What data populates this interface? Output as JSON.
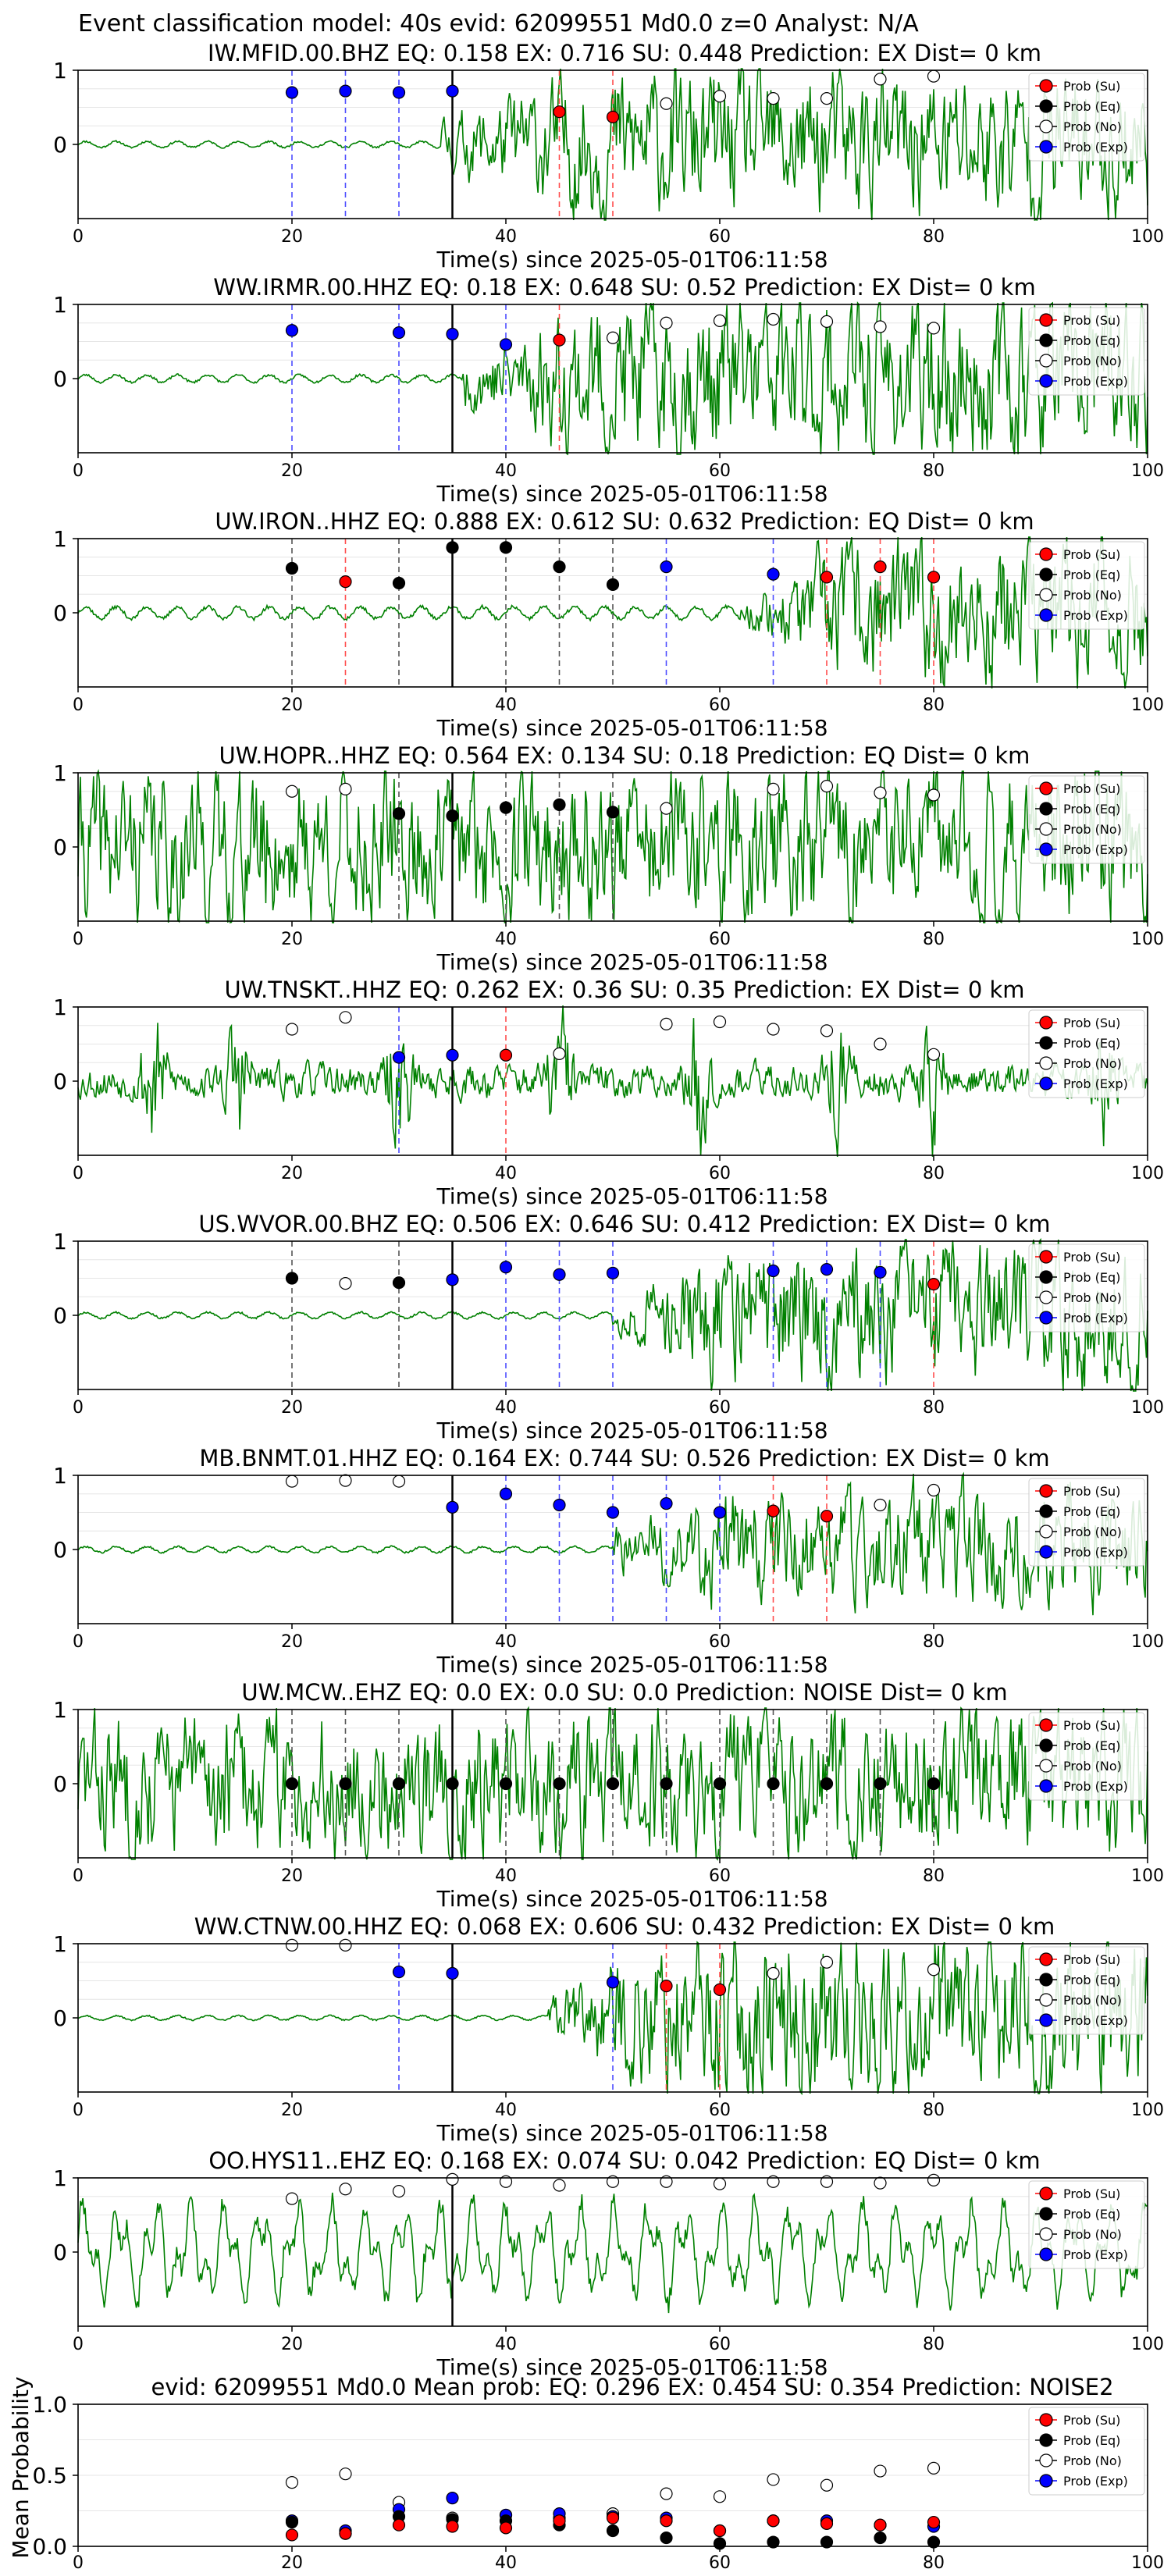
{
  "figure_title": "Event classification model: 40s evid: 62099551 Md0.0 z=0 Analyst: N/A",
  "legend_labels": [
    "Prob (Su)",
    "Prob (Eq)",
    "Prob (No)",
    "Prob (Exp)"
  ],
  "colors": {
    "su": "#ff0000",
    "eq": "#000000",
    "no": "#ffffff",
    "exp": "#0000ff",
    "trace": "#008000",
    "su_line": "#ff4d4d",
    "eq_line": "#555555",
    "exp_line": "#4d4dff",
    "onset_line": "#000000"
  },
  "chart_data": [
    {
      "type": "line",
      "title": "IW.MFID.00.BHZ   EQ: 0.158   EX: 0.716   SU: 0.448   Prediction: EX    Dist= 0 km",
      "xlabel": "Time(s) since 2025-05-01T06:11:58",
      "xlim": [
        0,
        100
      ],
      "ylim": [
        -1,
        1
      ],
      "xticks": [
        0,
        20,
        40,
        60,
        80,
        100
      ],
      "yticks": [
        0,
        1
      ],
      "onset": 35,
      "trace": {
        "pre": 0.04,
        "post": 0.75,
        "onset_at": 34,
        "seed": 11,
        "style": "burst"
      },
      "points": [
        {
          "t": 20,
          "cls": "exp",
          "p": 0.7
        },
        {
          "t": 25,
          "cls": "exp",
          "p": 0.72
        },
        {
          "t": 30,
          "cls": "exp",
          "p": 0.7
        },
        {
          "t": 35,
          "cls": "exp",
          "p": 0.72
        },
        {
          "t": 45,
          "cls": "su",
          "p": 0.44
        },
        {
          "t": 50,
          "cls": "su",
          "p": 0.37
        },
        {
          "t": 55,
          "cls": "no",
          "p": 0.55
        },
        {
          "t": 60,
          "cls": "no",
          "p": 0.65
        },
        {
          "t": 65,
          "cls": "no",
          "p": 0.62
        },
        {
          "t": 70,
          "cls": "no",
          "p": 0.62
        },
        {
          "t": 75,
          "cls": "no",
          "p": 0.88
        },
        {
          "t": 80,
          "cls": "no",
          "p": 0.92
        }
      ]
    },
    {
      "type": "line",
      "title": "WW.IRMR.00.HHZ   EQ: 0.18   EX: 0.648   SU: 0.52   Prediction: EX    Dist= 0 km",
      "xlabel": "Time(s) since 2025-05-01T06:11:58",
      "xlim": [
        0,
        100
      ],
      "ylim": [
        -1,
        1
      ],
      "xticks": [
        0,
        20,
        40,
        60,
        80,
        100
      ],
      "yticks": [
        0,
        1
      ],
      "onset": 35,
      "trace": {
        "pre": 0.05,
        "post": 0.85,
        "onset_at": 36,
        "seed": 23,
        "style": "burst"
      },
      "points": [
        {
          "t": 20,
          "cls": "exp",
          "p": 0.65
        },
        {
          "t": 30,
          "cls": "exp",
          "p": 0.62
        },
        {
          "t": 35,
          "cls": "exp",
          "p": 0.6
        },
        {
          "t": 40,
          "cls": "exp",
          "p": 0.46
        },
        {
          "t": 45,
          "cls": "su",
          "p": 0.52
        },
        {
          "t": 50,
          "cls": "no",
          "p": 0.55
        },
        {
          "t": 55,
          "cls": "no",
          "p": 0.75
        },
        {
          "t": 60,
          "cls": "no",
          "p": 0.78
        },
        {
          "t": 65,
          "cls": "no",
          "p": 0.8
        },
        {
          "t": 70,
          "cls": "no",
          "p": 0.77
        },
        {
          "t": 75,
          "cls": "no",
          "p": 0.7
        },
        {
          "t": 80,
          "cls": "no",
          "p": 0.68
        }
      ]
    },
    {
      "type": "line",
      "title": "UW.IRON..HHZ   EQ: 0.888   EX: 0.612   SU: 0.632   Prediction: EQ    Dist= 0 km",
      "xlabel": "Time(s) since 2025-05-01T06:11:58",
      "xlim": [
        0,
        100
      ],
      "ylim": [
        -1,
        1
      ],
      "xticks": [
        0,
        20,
        40,
        60,
        80,
        100
      ],
      "yticks": [
        0,
        1
      ],
      "onset": 35,
      "trace": {
        "pre": 0.08,
        "post": 0.12,
        "onset_at": 62,
        "late": 0.75,
        "seed": 37,
        "style": "late"
      },
      "points": [
        {
          "t": 20,
          "cls": "eq",
          "p": 0.6
        },
        {
          "t": 25,
          "cls": "su",
          "p": 0.42
        },
        {
          "t": 30,
          "cls": "eq",
          "p": 0.4
        },
        {
          "t": 35,
          "cls": "eq",
          "p": 0.88
        },
        {
          "t": 40,
          "cls": "eq",
          "p": 0.88
        },
        {
          "t": 45,
          "cls": "eq",
          "p": 0.62
        },
        {
          "t": 50,
          "cls": "eq",
          "p": 0.38
        },
        {
          "t": 55,
          "cls": "exp",
          "p": 0.62
        },
        {
          "t": 65,
          "cls": "exp",
          "p": 0.52
        },
        {
          "t": 70,
          "cls": "su",
          "p": 0.48
        },
        {
          "t": 75,
          "cls": "su",
          "p": 0.62
        },
        {
          "t": 80,
          "cls": "su",
          "p": 0.48
        }
      ]
    },
    {
      "type": "line",
      "title": "UW.HOPR..HHZ   EQ: 0.564   EX: 0.134   SU: 0.18   Prediction: EQ    Dist= 0 km",
      "xlabel": "Time(s) since 2025-05-01T06:11:58",
      "xlim": [
        0,
        100
      ],
      "ylim": [
        -1,
        1
      ],
      "xticks": [
        0,
        20,
        40,
        60,
        80,
        100
      ],
      "yticks": [
        0,
        1
      ],
      "onset": 35,
      "trace": {
        "pre": 0.8,
        "post": 0.8,
        "onset_at": 35,
        "seed": 41,
        "style": "noise"
      },
      "points": [
        {
          "t": 20,
          "cls": "no",
          "p": 0.75
        },
        {
          "t": 25,
          "cls": "no",
          "p": 0.78
        },
        {
          "t": 30,
          "cls": "eq",
          "p": 0.45
        },
        {
          "t": 35,
          "cls": "eq",
          "p": 0.42
        },
        {
          "t": 40,
          "cls": "eq",
          "p": 0.53
        },
        {
          "t": 45,
          "cls": "eq",
          "p": 0.57
        },
        {
          "t": 50,
          "cls": "eq",
          "p": 0.47
        },
        {
          "t": 55,
          "cls": "no",
          "p": 0.52
        },
        {
          "t": 65,
          "cls": "no",
          "p": 0.78
        },
        {
          "t": 70,
          "cls": "no",
          "p": 0.82
        },
        {
          "t": 75,
          "cls": "no",
          "p": 0.73
        },
        {
          "t": 80,
          "cls": "no",
          "p": 0.7
        }
      ]
    },
    {
      "type": "line",
      "title": "UW.TNSKT..HHZ   EQ: 0.262   EX: 0.36   SU: 0.35   Prediction: EX    Dist= 0 km",
      "xlabel": "Time(s) since 2025-05-01T06:11:58",
      "xlim": [
        0,
        100
      ],
      "ylim": [
        -1,
        1
      ],
      "xticks": [
        0,
        20,
        40,
        60,
        80,
        100
      ],
      "yticks": [
        0,
        1
      ],
      "onset": 35,
      "trace": {
        "pre": 0.18,
        "post": 0.25,
        "onset_at": 35,
        "seed": 53,
        "style": "bursts",
        "bursts": [
          7,
          15,
          30,
          45,
          58,
          71,
          80,
          96
        ]
      },
      "points": [
        {
          "t": 20,
          "cls": "no",
          "p": 0.7
        },
        {
          "t": 25,
          "cls": "no",
          "p": 0.86
        },
        {
          "t": 30,
          "cls": "exp",
          "p": 0.32
        },
        {
          "t": 35,
          "cls": "exp",
          "p": 0.35
        },
        {
          "t": 40,
          "cls": "su",
          "p": 0.35
        },
        {
          "t": 45,
          "cls": "no",
          "p": 0.37
        },
        {
          "t": 55,
          "cls": "no",
          "p": 0.77
        },
        {
          "t": 60,
          "cls": "no",
          "p": 0.8
        },
        {
          "t": 65,
          "cls": "no",
          "p": 0.7
        },
        {
          "t": 70,
          "cls": "no",
          "p": 0.68
        },
        {
          "t": 75,
          "cls": "no",
          "p": 0.5
        },
        {
          "t": 80,
          "cls": "no",
          "p": 0.36
        }
      ]
    },
    {
      "type": "line",
      "title": "US.WVOR.00.BHZ   EQ: 0.506   EX: 0.646   SU: 0.412   Prediction: EX    Dist= 0 km",
      "xlabel": "Time(s) since 2025-05-01T06:11:58",
      "xlim": [
        0,
        100
      ],
      "ylim": [
        -1,
        1
      ],
      "xticks": [
        0,
        20,
        40,
        60,
        80,
        100
      ],
      "yticks": [
        0,
        1
      ],
      "onset": 35,
      "trace": {
        "pre": 0.04,
        "post": 0.15,
        "onset_at": 50,
        "late": 0.7,
        "seed": 67,
        "style": "late"
      },
      "points": [
        {
          "t": 20,
          "cls": "eq",
          "p": 0.5
        },
        {
          "t": 25,
          "cls": "no",
          "p": 0.43
        },
        {
          "t": 30,
          "cls": "eq",
          "p": 0.44
        },
        {
          "t": 35,
          "cls": "exp",
          "p": 0.48
        },
        {
          "t": 40,
          "cls": "exp",
          "p": 0.65
        },
        {
          "t": 45,
          "cls": "exp",
          "p": 0.55
        },
        {
          "t": 50,
          "cls": "exp",
          "p": 0.57
        },
        {
          "t": 65,
          "cls": "exp",
          "p": 0.6
        },
        {
          "t": 70,
          "cls": "exp",
          "p": 0.62
        },
        {
          "t": 75,
          "cls": "exp",
          "p": 0.58
        },
        {
          "t": 80,
          "cls": "su",
          "p": 0.42
        }
      ]
    },
    {
      "type": "line",
      "title": "MB.BNMT.01.HHZ   EQ: 0.164   EX: 0.744   SU: 0.526   Prediction: EX    Dist= 0 km",
      "xlabel": "Time(s) since 2025-05-01T06:11:58",
      "xlim": [
        0,
        100
      ],
      "ylim": [
        -1,
        1
      ],
      "xticks": [
        0,
        20,
        40,
        60,
        80,
        100
      ],
      "yticks": [
        0,
        1
      ],
      "onset": 35,
      "trace": {
        "pre": 0.04,
        "post": 0.25,
        "onset_at": 50,
        "late": 0.6,
        "seed": 79,
        "style": "late"
      },
      "points": [
        {
          "t": 20,
          "cls": "no",
          "p": 0.92
        },
        {
          "t": 25,
          "cls": "no",
          "p": 0.93
        },
        {
          "t": 30,
          "cls": "no",
          "p": 0.92
        },
        {
          "t": 35,
          "cls": "exp",
          "p": 0.57
        },
        {
          "t": 40,
          "cls": "exp",
          "p": 0.75
        },
        {
          "t": 45,
          "cls": "exp",
          "p": 0.6
        },
        {
          "t": 50,
          "cls": "exp",
          "p": 0.5
        },
        {
          "t": 55,
          "cls": "exp",
          "p": 0.62
        },
        {
          "t": 60,
          "cls": "exp",
          "p": 0.5
        },
        {
          "t": 65,
          "cls": "su",
          "p": 0.52
        },
        {
          "t": 70,
          "cls": "su",
          "p": 0.45
        },
        {
          "t": 75,
          "cls": "no",
          "p": 0.6
        },
        {
          "t": 80,
          "cls": "no",
          "p": 0.8
        }
      ]
    },
    {
      "type": "line",
      "title": "UW.MCW..EHZ   EQ: 0.0   EX: 0.0   SU: 0.0   Prediction: NOISE    Dist= 0 km",
      "xlabel": "Time(s) since 2025-05-01T06:11:58",
      "xlim": [
        0,
        100
      ],
      "ylim": [
        -1,
        1
      ],
      "xticks": [
        0,
        20,
        40,
        60,
        80,
        100
      ],
      "yticks": [
        0,
        1
      ],
      "onset": 35,
      "trace": {
        "pre": 0.75,
        "post": 0.75,
        "onset_at": 35,
        "seed": 83,
        "style": "noise"
      },
      "points": [
        {
          "t": 20,
          "cls": "eq",
          "p": 0.0
        },
        {
          "t": 25,
          "cls": "eq",
          "p": 0.0
        },
        {
          "t": 30,
          "cls": "eq",
          "p": 0.0
        },
        {
          "t": 35,
          "cls": "eq",
          "p": 0.0
        },
        {
          "t": 40,
          "cls": "eq",
          "p": 0.0
        },
        {
          "t": 45,
          "cls": "eq",
          "p": 0.0
        },
        {
          "t": 50,
          "cls": "eq",
          "p": 0.0
        },
        {
          "t": 55,
          "cls": "eq",
          "p": 0.0
        },
        {
          "t": 60,
          "cls": "eq",
          "p": 0.0
        },
        {
          "t": 65,
          "cls": "eq",
          "p": 0.0
        },
        {
          "t": 70,
          "cls": "eq",
          "p": 0.0
        },
        {
          "t": 75,
          "cls": "eq",
          "p": 0.0
        },
        {
          "t": 80,
          "cls": "eq",
          "p": 0.0
        }
      ]
    },
    {
      "type": "line",
      "title": "WW.CTNW.00.HHZ   EQ: 0.068   EX: 0.606   SU: 0.432   Prediction: EX    Dist= 0 km",
      "xlabel": "Time(s) since 2025-05-01T06:11:58",
      "xlim": [
        0,
        100
      ],
      "ylim": [
        -1,
        1
      ],
      "xticks": [
        0,
        20,
        40,
        60,
        80,
        100
      ],
      "yticks": [
        0,
        1
      ],
      "onset": 35,
      "trace": {
        "pre": 0.03,
        "post": 0.2,
        "onset_at": 44,
        "late": 0.85,
        "seed": 97,
        "style": "late"
      },
      "points": [
        {
          "t": 20,
          "cls": "no",
          "p": 0.98
        },
        {
          "t": 25,
          "cls": "no",
          "p": 0.98
        },
        {
          "t": 30,
          "cls": "exp",
          "p": 0.62
        },
        {
          "t": 35,
          "cls": "exp",
          "p": 0.6
        },
        {
          "t": 50,
          "cls": "exp",
          "p": 0.48
        },
        {
          "t": 55,
          "cls": "su",
          "p": 0.43
        },
        {
          "t": 60,
          "cls": "su",
          "p": 0.38
        },
        {
          "t": 65,
          "cls": "no",
          "p": 0.6
        },
        {
          "t": 70,
          "cls": "no",
          "p": 0.75
        },
        {
          "t": 80,
          "cls": "no",
          "p": 0.65
        }
      ]
    },
    {
      "type": "line",
      "title": "OO.HYS11..EHZ   EQ: 0.168   EX: 0.074   SU: 0.042   Prediction: EQ    Dist= 0 km",
      "xlabel": "Time(s) since 2025-05-01T06:11:58",
      "xlim": [
        0,
        100
      ],
      "ylim": [
        -1,
        1
      ],
      "xticks": [
        0,
        20,
        40,
        60,
        80,
        100
      ],
      "yticks": [
        0,
        1
      ],
      "onset": 35,
      "trace": {
        "pre": 0.7,
        "post": 0.7,
        "onset_at": 35,
        "seed": 101,
        "style": "lowfreq"
      },
      "points": [
        {
          "t": 20,
          "cls": "no",
          "p": 0.72
        },
        {
          "t": 25,
          "cls": "no",
          "p": 0.85
        },
        {
          "t": 30,
          "cls": "no",
          "p": 0.82
        },
        {
          "t": 35,
          "cls": "no",
          "p": 0.98
        },
        {
          "t": 40,
          "cls": "no",
          "p": 0.95
        },
        {
          "t": 45,
          "cls": "no",
          "p": 0.9
        },
        {
          "t": 50,
          "cls": "no",
          "p": 0.95
        },
        {
          "t": 55,
          "cls": "no",
          "p": 0.95
        },
        {
          "t": 60,
          "cls": "no",
          "p": 0.92
        },
        {
          "t": 65,
          "cls": "no",
          "p": 0.95
        },
        {
          "t": 70,
          "cls": "no",
          "p": 0.95
        },
        {
          "t": 75,
          "cls": "no",
          "p": 0.93
        },
        {
          "t": 80,
          "cls": "no",
          "p": 0.97
        }
      ]
    },
    {
      "type": "scatter",
      "title": "evid: 62099551   Md0.0   Mean prob:   EQ: 0.296   EX: 0.454   SU: 0.354   Prediction: NOISE2",
      "ylabel": "Mean Probability",
      "xlim": [
        0,
        100
      ],
      "ylim": [
        0,
        1
      ],
      "xticks": [
        0,
        20,
        40,
        60,
        80,
        100
      ],
      "yticks": [
        0.0,
        0.5,
        1.0
      ],
      "series": [
        {
          "name": "Prob (No)",
          "cls": "no",
          "x": [
            20,
            25,
            30,
            35,
            40,
            45,
            50,
            55,
            60,
            65,
            70,
            75,
            80
          ],
          "y": [
            0.45,
            0.51,
            0.31,
            0.2,
            0.22,
            0.2,
            0.23,
            0.37,
            0.35,
            0.47,
            0.43,
            0.53,
            0.55
          ]
        },
        {
          "name": "Prob (Exp)",
          "cls": "exp",
          "x": [
            20,
            25,
            30,
            35,
            40,
            45,
            50,
            55,
            60,
            65,
            70,
            75,
            80
          ],
          "y": [
            0.18,
            0.11,
            0.26,
            0.34,
            0.22,
            0.23,
            0.21,
            0.2,
            0.11,
            0.18,
            0.18,
            0.15,
            0.14
          ]
        },
        {
          "name": "Prob (Eq)",
          "cls": "eq",
          "x": [
            20,
            25,
            30,
            35,
            40,
            45,
            50,
            55,
            60,
            65,
            70,
            75,
            80
          ],
          "y": [
            0.17,
            0.09,
            0.21,
            0.19,
            0.18,
            0.15,
            0.11,
            0.06,
            0.02,
            0.03,
            0.03,
            0.06,
            0.03
          ]
        },
        {
          "name": "Prob (Su)",
          "cls": "su",
          "x": [
            20,
            25,
            30,
            35,
            40,
            45,
            50,
            55,
            60,
            65,
            70,
            75,
            80
          ],
          "y": [
            0.08,
            0.09,
            0.15,
            0.14,
            0.13,
            0.18,
            0.2,
            0.18,
            0.11,
            0.18,
            0.16,
            0.15,
            0.17
          ]
        }
      ]
    }
  ]
}
